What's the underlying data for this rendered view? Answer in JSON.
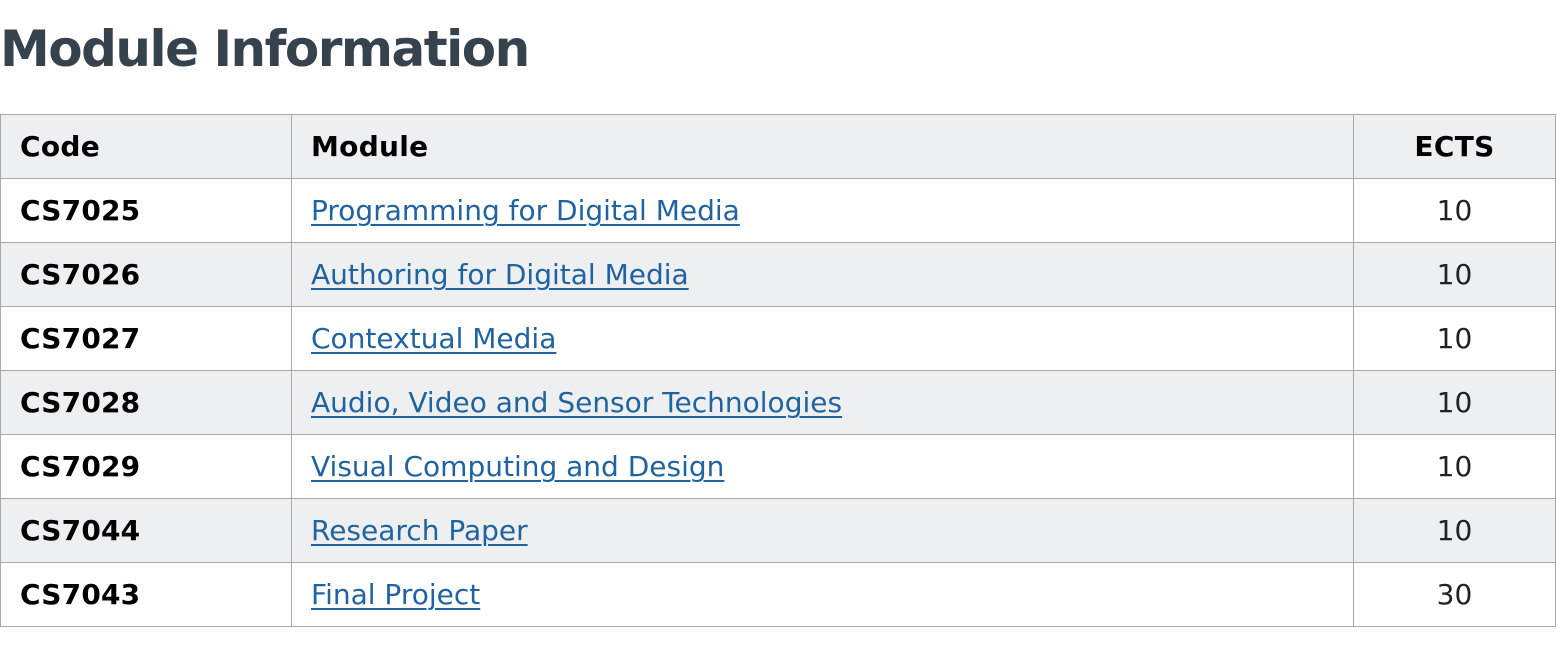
{
  "page": {
    "title": "Module Information"
  },
  "table": {
    "headers": {
      "code": "Code",
      "module": "Module",
      "ects": "ECTS"
    },
    "rows": [
      {
        "code": "CS7025",
        "module": "Programming for Digital Media",
        "ects": "10"
      },
      {
        "code": "CS7026",
        "module": "Authoring for Digital Media",
        "ects": "10"
      },
      {
        "code": "CS7027",
        "module": "Contextual Media",
        "ects": "10"
      },
      {
        "code": "CS7028",
        "module": "Audio, Video and Sensor Technologies",
        "ects": "10"
      },
      {
        "code": "CS7029",
        "module": "Visual Computing and Design",
        "ects": "10"
      },
      {
        "code": "CS7044",
        "module": "Research Paper",
        "ects": "10"
      },
      {
        "code": "CS7043",
        "module": "Final Project",
        "ects": "30"
      }
    ]
  },
  "colors": {
    "title": "#36424d",
    "link": "#1f63a0",
    "stripe": "#eeeff1",
    "border": "#a9a9a9"
  }
}
